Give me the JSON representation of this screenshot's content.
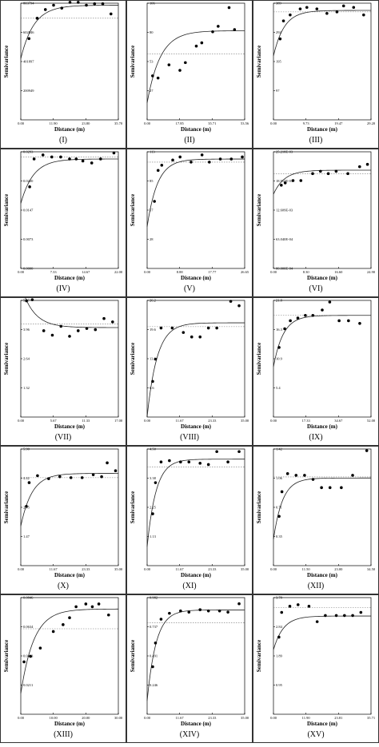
{
  "chart_data": [
    {
      "type": "scatter",
      "label": "(I)",
      "xlabel": "Distance (m)",
      "ylabel": "Semivariance",
      "xticks": [
        "0.00",
        "11.90",
        "23.80",
        "35.70"
      ],
      "xlim": [
        0,
        35.7
      ],
      "yticks": [
        "200949",
        "401897",
        "602846",
        "803794"
      ],
      "ylim": [
        0,
        803794
      ],
      "sill": 700000,
      "points": [
        [
          3,
          560000
        ],
        [
          6,
          700000
        ],
        [
          9,
          760000
        ],
        [
          12,
          790000
        ],
        [
          15,
          770000
        ],
        [
          18,
          810000
        ],
        [
          21,
          810000
        ],
        [
          24,
          790000
        ],
        [
          27,
          800000
        ],
        [
          30,
          800000
        ],
        [
          33,
          730000
        ]
      ]
    },
    {
      "type": "scatter",
      "label": "(II)",
      "xlabel": "Distance (m)",
      "ylabel": "Semivariance",
      "xticks": [
        "0.00",
        "17.85",
        "35.71",
        "53.56"
      ],
      "xlim": [
        0,
        53.56
      ],
      "yticks": [
        "27",
        "53",
        "80",
        "106"
      ],
      "ylim": [
        0,
        106
      ],
      "sill": 60,
      "points": [
        [
          3,
          40
        ],
        [
          6,
          38
        ],
        [
          12,
          50
        ],
        [
          18,
          45
        ],
        [
          21,
          52
        ],
        [
          27,
          67
        ],
        [
          30,
          70
        ],
        [
          36,
          80
        ],
        [
          39,
          85
        ],
        [
          45,
          102
        ],
        [
          48,
          82
        ]
      ]
    },
    {
      "type": "scatter",
      "label": "(III)",
      "xlabel": "Distance (m)",
      "ylabel": "Semivariance",
      "xticks": [
        "0.00",
        "9.73",
        "19.47",
        "29.20"
      ],
      "xlim": [
        0,
        29.2
      ],
      "yticks": [
        "97",
        "195",
        "292",
        "389"
      ],
      "ylim": [
        0,
        389
      ],
      "sill": 360,
      "points": [
        [
          2,
          270
        ],
        [
          3,
          330
        ],
        [
          5,
          350
        ],
        [
          8,
          370
        ],
        [
          10,
          375
        ],
        [
          13,
          370
        ],
        [
          16,
          355
        ],
        [
          19,
          360
        ],
        [
          21,
          380
        ],
        [
          24,
          375
        ],
        [
          27,
          350
        ]
      ]
    },
    {
      "type": "scatter",
      "label": "(IV)",
      "xlabel": "Distance (m)",
      "ylabel": "Semivariance",
      "xticks": [
        "0.00",
        "7.33",
        "14.67",
        "22.00"
      ],
      "xlim": [
        0,
        22
      ],
      "yticks": [
        "0.0000",
        "0.0073",
        "0.0147",
        "0.0220",
        "0.0293"
      ],
      "ylim": [
        0,
        0.0293
      ],
      "sill": 0.028,
      "points": [
        [
          2,
          0.0205
        ],
        [
          3,
          0.0275
        ],
        [
          5,
          0.0285
        ],
        [
          7,
          0.028
        ],
        [
          9,
          0.028
        ],
        [
          11,
          0.0275
        ],
        [
          12.5,
          0.0275
        ],
        [
          14,
          0.027
        ],
        [
          16,
          0.0265
        ],
        [
          18,
          0.0275
        ],
        [
          21,
          0.029
        ]
      ]
    },
    {
      "type": "scatter",
      "label": "(V)",
      "xlabel": "Distance (m)",
      "ylabel": "Semivariance",
      "xticks": [
        "0.00",
        "8.88",
        "17.77",
        "26.65"
      ],
      "xlim": [
        0,
        26.65
      ],
      "yticks": [
        "28",
        "57",
        "85",
        "113"
      ],
      "ylim": [
        0,
        113
      ],
      "sill": 103,
      "points": [
        [
          2,
          65
        ],
        [
          3,
          95
        ],
        [
          4,
          100
        ],
        [
          7,
          105
        ],
        [
          9,
          108
        ],
        [
          12,
          103
        ],
        [
          15,
          110
        ],
        [
          17,
          103
        ],
        [
          20,
          106
        ],
        [
          23,
          106
        ],
        [
          26,
          108
        ]
      ]
    },
    {
      "type": "scatter",
      "label": "(VI)",
      "xlabel": "Distance (m)",
      "ylabel": "Semivariance",
      "xticks": [
        "0.00",
        "8.30",
        "16.60",
        "24.90"
      ],
      "xlim": [
        0,
        24.9
      ],
      "yticks": [
        "00.000E-04",
        "63.040E-04",
        "12.609E-03",
        "18.914E-03",
        "25.218E-03"
      ],
      "ylim": [
        0,
        0.025218
      ],
      "sill": 0.0205,
      "points": [
        [
          2,
          0.018
        ],
        [
          3,
          0.0185
        ],
        [
          5,
          0.019
        ],
        [
          7,
          0.019
        ],
        [
          10,
          0.0205
        ],
        [
          12,
          0.021
        ],
        [
          14,
          0.0205
        ],
        [
          16,
          0.021
        ],
        [
          19,
          0.0205
        ],
        [
          22,
          0.022
        ],
        [
          24,
          0.0225
        ]
      ]
    },
    {
      "type": "scatter",
      "label": "(VII)",
      "xlabel": "Distance (m)",
      "ylabel": "Semivariance",
      "xticks": [
        "0.00",
        "5.67",
        "11.33",
        "17.00"
      ],
      "xlim": [
        0,
        17
      ],
      "yticks": [
        "1.32",
        "2.64",
        "3.96",
        "5.27"
      ],
      "ylim": [
        0,
        5.27
      ],
      "sill": 4.2,
      "points": [
        [
          1,
          5.25
        ],
        [
          2,
          5.3
        ],
        [
          4,
          3.9
        ],
        [
          5.5,
          3.7
        ],
        [
          7,
          4.1
        ],
        [
          8.5,
          3.65
        ],
        [
          10,
          3.9
        ],
        [
          11.5,
          4.0
        ],
        [
          13,
          3.95
        ],
        [
          14.5,
          4.45
        ],
        [
          16,
          4.3
        ]
      ]
    },
    {
      "type": "scatter",
      "label": "(VIII)",
      "xlabel": "Distance (m)",
      "ylabel": "Semivariance",
      "xticks": [
        "0.00",
        "11.67",
        "23.33",
        "35.00"
      ],
      "xlim": [
        0,
        35
      ],
      "yticks": [
        "6.6",
        "13.1",
        "19.6",
        "26.2"
      ],
      "ylim": [
        0,
        26.2
      ],
      "sill": 20.3,
      "points": [
        [
          2,
          8
        ],
        [
          3,
          13
        ],
        [
          5,
          20
        ],
        [
          9,
          20
        ],
        [
          13,
          19
        ],
        [
          16,
          18
        ],
        [
          19,
          18
        ],
        [
          22,
          20
        ],
        [
          25,
          20
        ],
        [
          30,
          26
        ],
        [
          33,
          25
        ]
      ]
    },
    {
      "type": "scatter",
      "label": "(IX)",
      "xlabel": "Distance (m)",
      "ylabel": "Semivariance",
      "xticks": [
        "0.00",
        "17.33",
        "34.67",
        "52.00"
      ],
      "xlim": [
        0,
        52
      ],
      "yticks": [
        "5.4",
        "10.9",
        "16.3",
        "21.8"
      ],
      "ylim": [
        0,
        21.8
      ],
      "sill": 19,
      "points": [
        [
          3,
          13
        ],
        [
          6,
          16.5
        ],
        [
          9,
          18
        ],
        [
          13,
          18.5
        ],
        [
          17,
          19
        ],
        [
          21,
          19
        ],
        [
          26,
          20
        ],
        [
          30,
          21.5
        ],
        [
          35,
          18
        ],
        [
          40,
          18
        ],
        [
          46,
          17.5
        ]
      ]
    },
    {
      "type": "scatter",
      "label": "(X)",
      "xlabel": "Distance (m)",
      "ylabel": "Semivariance",
      "xticks": [
        "0.00",
        "11.67",
        "23.33",
        "35.00"
      ],
      "xlim": [
        0,
        35
      ],
      "yticks": [
        "1.47",
        "2.95",
        "4.42",
        "5.90"
      ],
      "ylim": [
        0,
        5.9
      ],
      "sill": 4.45,
      "points": [
        [
          2,
          3.0
        ],
        [
          3,
          4.2
        ],
        [
          6,
          4.55
        ],
        [
          10,
          4.4
        ],
        [
          14,
          4.5
        ],
        [
          18,
          4.45
        ],
        [
          22,
          4.45
        ],
        [
          26,
          4.6
        ],
        [
          29,
          4.5
        ],
        [
          31,
          5.2
        ],
        [
          34,
          4.8
        ]
      ]
    },
    {
      "type": "scatter",
      "label": "(XI)",
      "xlabel": "Distance (m)",
      "ylabel": "Semivariance",
      "xticks": [
        "0.00",
        "11.67",
        "23.33",
        "35.00"
      ],
      "xlim": [
        0,
        35
      ],
      "yticks": [
        "1.13",
        "2.25",
        "3.38",
        "4.50"
      ],
      "ylim": [
        0,
        4.5
      ],
      "sill": 3.8,
      "points": [
        [
          2,
          2.0
        ],
        [
          3,
          3.2
        ],
        [
          5,
          4.0
        ],
        [
          8,
          4.05
        ],
        [
          12,
          4.0
        ],
        [
          15,
          4.0
        ],
        [
          19,
          3.95
        ],
        [
          22,
          3.9
        ],
        [
          25,
          4.4
        ],
        [
          29,
          4.0
        ],
        [
          33,
          4.4
        ]
      ]
    },
    {
      "type": "scatter",
      "label": "(XII)",
      "xlabel": "Distance (m)",
      "ylabel": "Semivariance",
      "xticks": [
        "0.00",
        "11.50",
        "23.00",
        "34.50"
      ],
      "xlim": [
        0,
        34.5
      ],
      "yticks": [
        "0.35",
        "0.71",
        "1.06",
        "1.42"
      ],
      "ylim": [
        0,
        1.42
      ],
      "sill": 1.08,
      "points": [
        [
          2,
          0.6
        ],
        [
          3,
          0.9
        ],
        [
          5,
          1.12
        ],
        [
          8,
          1.1
        ],
        [
          11,
          1.1
        ],
        [
          14,
          1.05
        ],
        [
          17,
          0.95
        ],
        [
          20,
          0.95
        ],
        [
          24,
          0.95
        ],
        [
          28,
          1.1
        ],
        [
          33,
          1.4
        ]
      ]
    },
    {
      "type": "scatter",
      "label": "(XIII)",
      "xlabel": "Distance (m)",
      "ylabel": "Semivariance",
      "xticks": [
        "0.00",
        "10.00",
        "20.00",
        "30.00"
      ],
      "xlim": [
        0,
        30
      ],
      "yticks": [
        "0.0211",
        "0.0423",
        "0.0634",
        "0.0846"
      ],
      "ylim": [
        0,
        0.0846
      ],
      "sill": 0.062,
      "points": [
        [
          1,
          0.038
        ],
        [
          3,
          0.042
        ],
        [
          6,
          0.048
        ],
        [
          10,
          0.06
        ],
        [
          13,
          0.065
        ],
        [
          15,
          0.07
        ],
        [
          17,
          0.078
        ],
        [
          20,
          0.08
        ],
        [
          22,
          0.078
        ],
        [
          24,
          0.08
        ],
        [
          27,
          0.072
        ]
      ]
    },
    {
      "type": "scatter",
      "label": "(XIV)",
      "xlabel": "Distance (m)",
      "ylabel": "Semivariance",
      "xticks": [
        "0.00",
        "11.67",
        "23.33",
        "35.00"
      ],
      "xlim": [
        0,
        35
      ],
      "yticks": [
        "0.246",
        "0.491",
        "0.737",
        "0.982"
      ],
      "ylim": [
        0,
        0.982
      ],
      "sill": 0.77,
      "points": [
        [
          2,
          0.4
        ],
        [
          3,
          0.6
        ],
        [
          5,
          0.8
        ],
        [
          8,
          0.85
        ],
        [
          12,
          0.87
        ],
        [
          15,
          0.86
        ],
        [
          19,
          0.88
        ],
        [
          22,
          0.87
        ],
        [
          26,
          0.87
        ],
        [
          29,
          0.86
        ],
        [
          33,
          0.93
        ]
      ]
    },
    {
      "type": "scatter",
      "label": "(XV)",
      "xlabel": "Distance (m)",
      "ylabel": "Semivariance",
      "xticks": [
        "0.00",
        "11.90",
        "23.81",
        "35.71"
      ],
      "xlim": [
        0,
        35.71
      ],
      "yticks": [
        "0.95",
        "1.89",
        "2.84",
        "3.78"
      ],
      "ylim": [
        0,
        3.78
      ],
      "sill": 3.45,
      "points": [
        [
          2,
          2.5
        ],
        [
          3,
          3.3
        ],
        [
          6,
          3.5
        ],
        [
          9,
          3.55
        ],
        [
          13,
          3.5
        ],
        [
          16,
          3.0
        ],
        [
          19,
          3.2
        ],
        [
          23,
          3.2
        ],
        [
          26,
          3.2
        ],
        [
          29,
          3.2
        ],
        [
          32,
          3.3
        ]
      ]
    }
  ]
}
